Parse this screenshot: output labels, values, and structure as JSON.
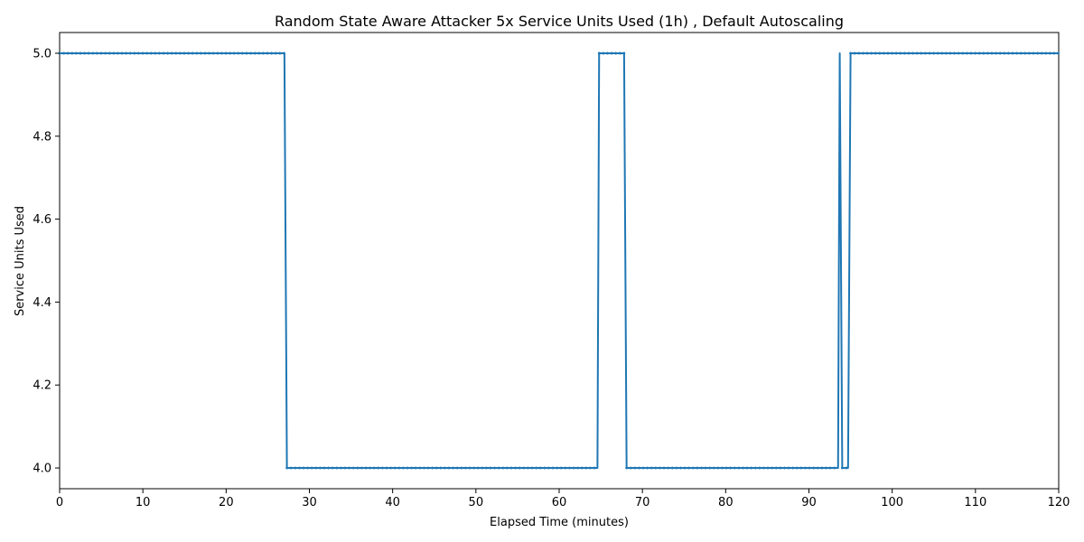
{
  "chart_data": {
    "type": "line",
    "title": "Random State Aware Attacker 5x Service Units Used (1h) , Default Autoscaling",
    "xlabel": "Elapsed Time (minutes)",
    "ylabel": "Service Units Used",
    "xlim": [
      0,
      120
    ],
    "ylim": [
      3.95,
      5.05
    ],
    "xticks": [
      0,
      10,
      20,
      30,
      40,
      50,
      60,
      70,
      80,
      90,
      100,
      110,
      120
    ],
    "yticks": [
      4.0,
      4.2,
      4.4,
      4.6,
      4.8,
      5.0
    ],
    "ytick_labels": [
      "4.0",
      "4.2",
      "4.4",
      "4.6",
      "4.8",
      "5.0"
    ],
    "grid": false,
    "series": [
      {
        "color": "#1f77b4",
        "marker": "small-dot",
        "segments": [
          {
            "x": [
              0,
              27.0,
              27.3,
              64.6,
              64.8,
              67.8,
              68.1,
              93.5,
              93.7,
              94.0,
              94.7,
              95.0,
              120
            ],
            "y": [
              5,
              5,
              4,
              4,
              5,
              5,
              4,
              4,
              5,
              4,
              4,
              5,
              5
            ]
          }
        ]
      }
    ]
  }
}
